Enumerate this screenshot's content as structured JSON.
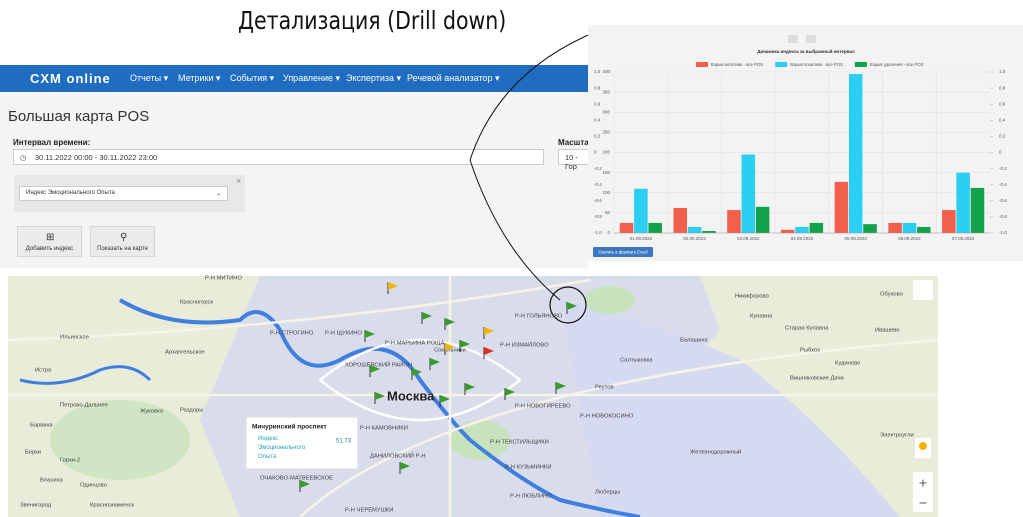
{
  "heading": "Детализация (Drill down)",
  "navbar": {
    "logo": "CXM online",
    "menu": [
      "Отчеты ▾",
      "Метрики ▾",
      "События ▾",
      "Управление ▾",
      "Экспертиза ▾",
      "Речевой анализатор ▾"
    ]
  },
  "page": {
    "title": "Большая карта POS",
    "interval_label": "Интервал времени:",
    "interval_value": "30.11.2022 00:00 - 30.11.2022 23:00",
    "scale_label": "Масштаб",
    "scale_value": "10 - Гор",
    "index_select": "Индекс Эмоционального Опыта",
    "close": "×",
    "buttons": [
      "Добавить индекс",
      "Показать на карте"
    ]
  },
  "map": {
    "city": "Москва",
    "labels": [
      "Р-Н МИТИНО",
      "Красногорск",
      "Р-Н СТРОГИНО",
      "Р-Н ЩУКИНО",
      "Архангельское",
      "Ильинское",
      "Истра",
      "Р-Н МАРЬИНА РОЩА",
      "ХОРОШЁВСКИЙ РАЙОН",
      "Сокольники",
      "Р-Н ИЗМАЙЛОВО",
      "Р-Н ГОЛЬЯНОВО",
      "Балашиха",
      "Реутов",
      "Р-Н НОВОГИРЕЕВО",
      "Р-Н НОВОКОСИНО",
      "Р-Н ТЕКСТИЛЬЩИКИ",
      "Р-Н КУЗЬМИНКИ",
      "Р-Н ЛЮБЛИНО",
      "Люберцы",
      "ДАНИЛОВСКИЙ Р-Н",
      "Р-Н КАМОВНИКИ",
      "ОЧАКОВО-МАТВЕЕВСКОЕ",
      "Р-Н ЧЕРЁМУШКИ",
      "Одинцово",
      "Жуковка",
      "Раздоры",
      "Петрово-Дальнее",
      "Железнодорожный",
      "Никифорово",
      "Купавна",
      "Старая Купавна",
      "Ивашево",
      "Кудиново",
      "Вишняковские Дачи",
      "Электроугли",
      "Обухово",
      "Рыбхоз",
      "Салтыковка",
      "Барвиха",
      "Горки-2",
      "Борки",
      "Власиха",
      "Краснознаменск",
      "Звенигород"
    ],
    "popup": {
      "title": "Мичуринский проспект",
      "index": "Индекс Эмоционального Опыта",
      "value": "51.73"
    }
  },
  "chart_data": {
    "type": "bar",
    "title": "Динамика индекса за выбранный интервал",
    "categories": [
      "01.09.2022",
      "02.09.2022",
      "03.09.2022",
      "04.09.2022",
      "05.09.2022",
      "06.09.2022",
      "07.09.2022"
    ],
    "series": [
      {
        "name": "Взрыв негатива - все POS",
        "color": "#f0604d",
        "values": [
          25,
          62,
          57,
          8,
          127,
          25,
          57
        ]
      },
      {
        "name": "Взрыв позитива - все POS",
        "color": "#2bcff2",
        "values": [
          110,
          15,
          195,
          15,
          395,
          25,
          150
        ]
      },
      {
        "name": "Взрыв удаления - все POS",
        "color": "#12a24b",
        "values": [
          25,
          5,
          65,
          25,
          22,
          15,
          112
        ]
      }
    ],
    "ylim": [
      0,
      400
    ],
    "yticks": [
      0,
      50,
      100,
      150,
      200,
      250,
      300,
      350,
      400
    ],
    "y2lim": [
      -1,
      1
    ],
    "y2ticks": [
      {
        "value": -1,
        "label": "-1.0"
      },
      -0.8,
      -0.6,
      -0.4,
      -0.2,
      0,
      0.2,
      0.4,
      0.6,
      0.8,
      {
        "value": 1,
        "label": "1.0"
      }
    ],
    "grid": true,
    "button": "Скачать в формате Excel"
  }
}
